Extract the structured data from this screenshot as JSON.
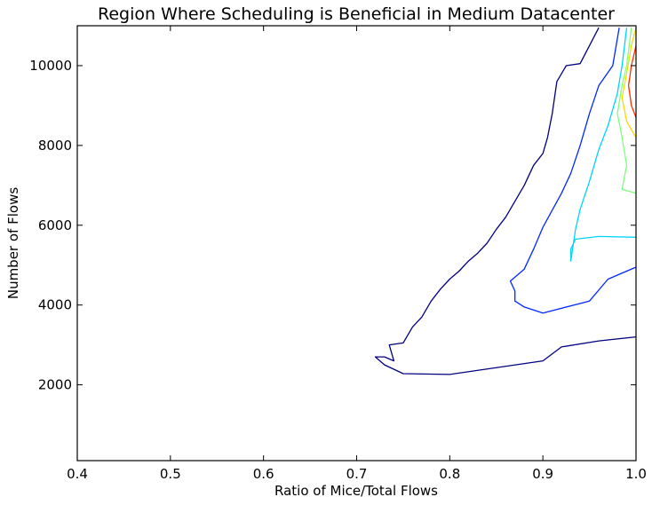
{
  "chart_data": {
    "type": "line",
    "subtype": "contour",
    "title": "Region Where Scheduling is Beneficial in Medium Datacenter",
    "xlabel": "Ratio of Mice/Total Flows",
    "ylabel": "Number of Flows",
    "xlim": [
      0.4,
      1.0
    ],
    "ylim": [
      100,
      11000
    ],
    "xticks": [
      0.4,
      0.5,
      0.6,
      0.7,
      0.8,
      0.9,
      1.0
    ],
    "xtick_labels": [
      "0.4",
      "0.5",
      "0.6",
      "0.7",
      "0.8",
      "0.9",
      "1.0"
    ],
    "yticks": [
      2000,
      4000,
      6000,
      8000,
      10000
    ],
    "ytick_labels": [
      "2000",
      "4000",
      "6000",
      "8000",
      "10000"
    ],
    "grid": false,
    "colormap": "jet",
    "series": [
      {
        "color": "#000080",
        "points": [
          [
            1.0,
            3200
          ],
          [
            0.96,
            3100
          ],
          [
            0.92,
            2950
          ],
          [
            0.9,
            2600
          ],
          [
            0.8,
            2260
          ],
          [
            0.75,
            2280
          ],
          [
            0.73,
            2500
          ],
          [
            0.72,
            2700
          ],
          [
            0.73,
            2700
          ],
          [
            0.74,
            2600
          ],
          [
            0.735,
            3000
          ],
          [
            0.75,
            3050
          ],
          [
            0.76,
            3450
          ],
          [
            0.77,
            3700
          ],
          [
            0.78,
            4100
          ],
          [
            0.79,
            4400
          ],
          [
            0.8,
            4650
          ],
          [
            0.81,
            4850
          ],
          [
            0.82,
            5100
          ],
          [
            0.83,
            5300
          ],
          [
            0.84,
            5550
          ],
          [
            0.85,
            5900
          ],
          [
            0.86,
            6200
          ],
          [
            0.87,
            6600
          ],
          [
            0.88,
            7000
          ],
          [
            0.89,
            7500
          ],
          [
            0.9,
            7800
          ],
          [
            0.905,
            8200
          ],
          [
            0.91,
            8800
          ],
          [
            0.915,
            9600
          ],
          [
            0.925,
            10000
          ],
          [
            0.94,
            10050
          ],
          [
            0.96,
            10950
          ]
        ]
      },
      {
        "color": "#0028ff",
        "points": [
          [
            1.0,
            4950
          ],
          [
            0.97,
            4650
          ],
          [
            0.95,
            4100
          ],
          [
            0.9,
            3800
          ],
          [
            0.88,
            3950
          ],
          [
            0.87,
            4100
          ],
          [
            0.87,
            4350
          ],
          [
            0.865,
            4600
          ],
          [
            0.88,
            4900
          ],
          [
            0.89,
            5400
          ],
          [
            0.9,
            5950
          ],
          [
            0.92,
            6800
          ],
          [
            0.93,
            7300
          ],
          [
            0.94,
            8000
          ],
          [
            0.95,
            8800
          ],
          [
            0.96,
            9500
          ],
          [
            0.975,
            10000
          ],
          [
            0.982,
            10950
          ]
        ]
      },
      {
        "color": "#00d4ff",
        "points": [
          [
            1.0,
            5700
          ],
          [
            0.96,
            5720
          ],
          [
            0.935,
            5650
          ],
          [
            0.93,
            5400
          ],
          [
            0.93,
            5100
          ],
          [
            0.935,
            5900
          ],
          [
            0.94,
            6400
          ],
          [
            0.95,
            7100
          ],
          [
            0.96,
            7900
          ],
          [
            0.97,
            8500
          ],
          [
            0.98,
            9300
          ],
          [
            0.985,
            10000
          ],
          [
            0.99,
            10950
          ]
        ]
      },
      {
        "color": "#7cff79",
        "points": [
          [
            1.0,
            6800
          ],
          [
            0.985,
            6900
          ],
          [
            0.99,
            7500
          ],
          [
            0.985,
            8200
          ],
          [
            0.98,
            8800
          ],
          [
            0.985,
            9500
          ],
          [
            0.99,
            10000
          ],
          [
            0.995,
            10950
          ]
        ]
      },
      {
        "color": "#ffd700",
        "points": [
          [
            1.0,
            8200
          ],
          [
            0.99,
            8600
          ],
          [
            0.985,
            9200
          ],
          [
            0.99,
            9800
          ],
          [
            0.995,
            10500
          ],
          [
            1.0,
            10950
          ]
        ]
      },
      {
        "color": "#ff3000",
        "points": [
          [
            1.0,
            8700
          ],
          [
            0.995,
            9000
          ],
          [
            0.992,
            9500
          ],
          [
            0.995,
            10000
          ],
          [
            1.0,
            10500
          ]
        ]
      }
    ]
  }
}
